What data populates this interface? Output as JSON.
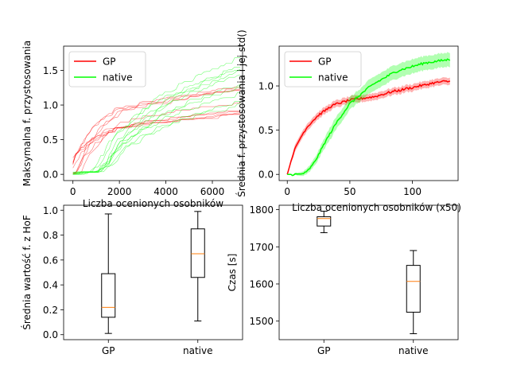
{
  "chart_data": [
    {
      "type": "line",
      "ylabel": "Maksymalna f. przystosowania",
      "xlabel": "Liczba ocenionych osobników",
      "xlim": [
        -400,
        7300
      ],
      "ylim": [
        -0.09,
        1.85
      ],
      "xticks": [
        0,
        2000,
        4000,
        6000
      ],
      "yticks": [
        0.0,
        0.5,
        1.0,
        1.5
      ],
      "tick_labels_x": [
        "0",
        "2000",
        "4000",
        "6000"
      ],
      "tick_labels_y": [
        "0.0",
        "0.5",
        "1.0",
        "1.5"
      ],
      "legend_position": "top-left",
      "series": [
        {
          "name": "GP",
          "color": "#ff0000",
          "runs": 10,
          "x": [
            0,
            500,
            1000,
            1500,
            2000,
            3000,
            4000,
            5000,
            6000,
            7300
          ],
          "typical": [
            0.0,
            0.35,
            0.55,
            0.7,
            0.78,
            0.85,
            0.9,
            0.95,
            1.0,
            1.05
          ]
        },
        {
          "name": "native",
          "color": "#00ff00",
          "runs": 10,
          "x": [
            0,
            1000,
            1500,
            2000,
            3000,
            4000,
            5000,
            6000,
            7300
          ],
          "typical": [
            0.0,
            0.0,
            0.15,
            0.4,
            0.65,
            0.85,
            1.0,
            1.1,
            1.25
          ]
        }
      ]
    },
    {
      "type": "line",
      "ylabel": "Średnia f. przystosowania i jej std()",
      "xlabel": "Liczba ocenionych osobników (x50)",
      "xlim": [
        -6.5,
        136.5
      ],
      "ylim": [
        -0.07,
        1.45
      ],
      "xticks": [
        0,
        50,
        100
      ],
      "yticks": [
        0.0,
        0.5,
        1.0
      ],
      "tick_labels_x": [
        "0",
        "50",
        "100"
      ],
      "tick_labels_y": [
        "0.0",
        "0.5",
        "1.0"
      ],
      "legend_position": "top-left",
      "series": [
        {
          "name": "GP",
          "color": "#ff0000",
          "x": [
            0,
            5,
            10,
            15,
            20,
            25,
            30,
            35,
            40,
            45,
            50,
            55,
            60,
            65,
            70,
            75,
            80,
            85,
            90,
            95,
            100,
            105,
            110,
            115,
            120,
            125,
            130
          ],
          "mean": [
            0.0,
            0.25,
            0.4,
            0.52,
            0.6,
            0.67,
            0.72,
            0.77,
            0.8,
            0.82,
            0.84,
            0.85,
            0.86,
            0.87,
            0.88,
            0.9,
            0.92,
            0.94,
            0.95,
            0.97,
            0.98,
            1.0,
            1.01,
            1.03,
            1.04,
            1.05,
            1.05
          ],
          "std": [
            0.0,
            0.04,
            0.04,
            0.04,
            0.04,
            0.04,
            0.04,
            0.04,
            0.04,
            0.04,
            0.04,
            0.04,
            0.04,
            0.04,
            0.04,
            0.04,
            0.04,
            0.04,
            0.04,
            0.04,
            0.04,
            0.04,
            0.04,
            0.04,
            0.04,
            0.04,
            0.04
          ]
        },
        {
          "name": "native",
          "color": "#00ff00",
          "x": [
            0,
            5,
            10,
            15,
            20,
            25,
            30,
            35,
            40,
            45,
            50,
            55,
            60,
            65,
            70,
            75,
            80,
            85,
            90,
            95,
            100,
            105,
            110,
            115,
            120,
            125,
            130
          ],
          "mean": [
            0.0,
            0.0,
            0.0,
            0.02,
            0.1,
            0.22,
            0.36,
            0.48,
            0.6,
            0.7,
            0.8,
            0.86,
            0.92,
            0.98,
            1.03,
            1.07,
            1.11,
            1.15,
            1.18,
            1.2,
            1.22,
            1.24,
            1.26,
            1.27,
            1.28,
            1.29,
            1.3
          ],
          "std": [
            0.0,
            0.01,
            0.02,
            0.03,
            0.04,
            0.05,
            0.06,
            0.07,
            0.07,
            0.07,
            0.07,
            0.07,
            0.07,
            0.08,
            0.08,
            0.08,
            0.08,
            0.08,
            0.08,
            0.08,
            0.08,
            0.08,
            0.08,
            0.08,
            0.08,
            0.08,
            0.08
          ]
        }
      ]
    },
    {
      "type": "box",
      "ylabel": "Średnia wartość f. z HoF",
      "categories": [
        "GP",
        "native"
      ],
      "ylim": [
        -0.04,
        1.04
      ],
      "yticks": [
        0.0,
        0.2,
        0.4,
        0.6,
        0.8,
        1.0
      ],
      "tick_labels_y": [
        "0.0",
        "0.2",
        "0.4",
        "0.6",
        "0.8",
        "1.0"
      ],
      "boxes": [
        {
          "whislo": 0.01,
          "q1": 0.14,
          "med": 0.22,
          "q3": 0.49,
          "whishi": 0.97
        },
        {
          "whislo": 0.11,
          "q1": 0.46,
          "med": 0.65,
          "q3": 0.85,
          "whishi": 0.99
        }
      ]
    },
    {
      "type": "box",
      "ylabel": "Czas [s]",
      "categories": [
        "GP",
        "native"
      ],
      "ylim": [
        1450,
        1812
      ],
      "yticks": [
        1500,
        1600,
        1700,
        1800
      ],
      "tick_labels_y": [
        "1500",
        "1600",
        "1700",
        "1800"
      ],
      "boxes": [
        {
          "whislo": 1738,
          "q1": 1756,
          "med": 1776,
          "q3": 1781,
          "whishi": 1796
        },
        {
          "whislo": 1466,
          "q1": 1524,
          "med": 1607,
          "q3": 1650,
          "whishi": 1690
        }
      ]
    }
  ]
}
